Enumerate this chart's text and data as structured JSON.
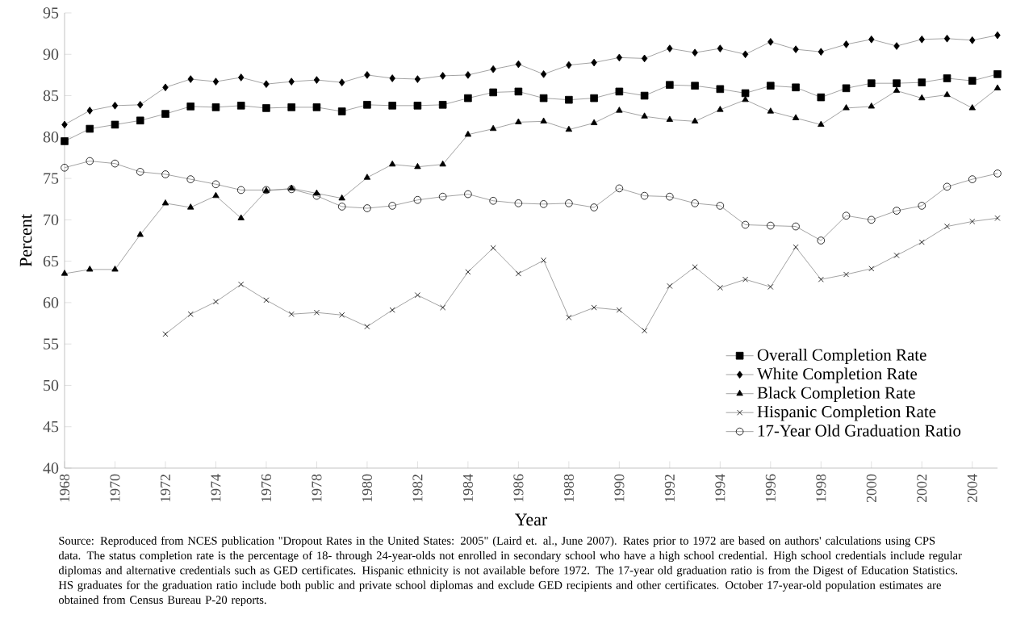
{
  "chart_data": {
    "type": "line",
    "xlabel": "Year",
    "ylabel": "Percent",
    "x": [
      1968,
      1969,
      1970,
      1971,
      1972,
      1973,
      1974,
      1975,
      1976,
      1977,
      1978,
      1979,
      1980,
      1981,
      1982,
      1983,
      1984,
      1985,
      1986,
      1987,
      1988,
      1989,
      1990,
      1991,
      1992,
      1993,
      1994,
      1995,
      1996,
      1997,
      1998,
      1999,
      2000,
      2001,
      2002,
      2003,
      2004,
      2005
    ],
    "series": [
      {
        "name": "Overall Completion Rate",
        "color": "#000000",
        "marker": "square",
        "values": [
          79.5,
          81.0,
          81.5,
          82.0,
          82.8,
          83.7,
          83.6,
          83.8,
          83.5,
          83.6,
          83.6,
          83.1,
          83.9,
          83.8,
          83.8,
          83.9,
          84.7,
          85.4,
          85.5,
          84.7,
          84.5,
          84.7,
          85.5,
          85.0,
          86.3,
          86.2,
          85.8,
          85.3,
          86.2,
          86.0,
          84.8,
          85.9,
          86.5,
          86.5,
          86.6,
          87.1,
          86.8,
          87.6
        ]
      },
      {
        "name": "White Completion Rate",
        "color": "#000000",
        "marker": "diamond",
        "values": [
          81.5,
          83.2,
          83.8,
          83.9,
          86.0,
          87.0,
          86.7,
          87.2,
          86.4,
          86.7,
          86.9,
          86.6,
          87.5,
          87.1,
          87.0,
          87.4,
          87.5,
          88.2,
          88.8,
          87.6,
          88.7,
          89.0,
          89.6,
          89.5,
          90.7,
          90.2,
          90.7,
          90.0,
          91.5,
          90.6,
          90.3,
          91.2,
          91.8,
          91.0,
          91.8,
          91.9,
          91.7,
          92.3
        ]
      },
      {
        "name": "Black Completion Rate",
        "color": "#000000",
        "marker": "triangle",
        "values": [
          63.5,
          64.0,
          64.0,
          68.2,
          72.0,
          71.5,
          72.9,
          70.2,
          73.5,
          73.8,
          73.2,
          72.6,
          75.1,
          76.7,
          76.4,
          76.7,
          80.3,
          81.0,
          81.8,
          81.9,
          80.9,
          81.7,
          83.2,
          82.5,
          82.1,
          81.9,
          83.3,
          84.5,
          83.1,
          82.3,
          81.5,
          83.5,
          83.7,
          85.6,
          84.7,
          85.1,
          83.5,
          85.9
        ]
      },
      {
        "name": "Hispanic Completion Rate",
        "color": "#000000",
        "marker": "cross",
        "values": [
          null,
          null,
          null,
          null,
          56.2,
          58.6,
          60.1,
          62.2,
          60.3,
          58.6,
          58.8,
          58.5,
          57.1,
          59.1,
          60.9,
          59.4,
          63.7,
          66.6,
          63.5,
          65.1,
          58.2,
          59.4,
          59.1,
          56.6,
          62.0,
          64.3,
          61.8,
          62.8,
          61.9,
          66.7,
          62.8,
          63.4,
          64.1,
          65.7,
          67.3,
          69.2,
          69.8,
          70.2
        ]
      },
      {
        "name": "17-Year Old Graduation Ratio",
        "color": "#000000",
        "marker": "circle",
        "values": [
          76.3,
          77.1,
          76.8,
          75.8,
          75.5,
          74.9,
          74.3,
          73.6,
          73.6,
          73.7,
          72.9,
          71.6,
          71.4,
          71.7,
          72.4,
          72.8,
          73.1,
          72.3,
          72.0,
          71.9,
          72.0,
          71.5,
          73.8,
          72.9,
          72.8,
          72.0,
          71.7,
          69.4,
          69.3,
          69.2,
          67.5,
          70.5,
          70.0,
          71.1,
          71.7,
          74.0,
          74.9,
          75.6
        ]
      }
    ],
    "xlim": [
      1968,
      2005
    ],
    "xticks": [
      1968,
      1970,
      1972,
      1974,
      1976,
      1978,
      1980,
      1982,
      1984,
      1986,
      1988,
      1990,
      1992,
      1994,
      1996,
      1998,
      2000,
      2002,
      2004
    ],
    "ylim": [
      40,
      95
    ],
    "yticks": [
      40,
      45,
      50,
      55,
      60,
      65,
      70,
      75,
      80,
      85,
      90,
      95
    ],
    "legend": "bottom right",
    "annotations": [
      "Source: Reproduced from NCES publication \"Dropout Rates in the United States: 2005\" (Laird et. al., June 2007). Rates prior to 1972 are based on authors' calculations using CPS data. The status completion rate is the percentage of 18- through 24-year-olds not enrolled in secondary school who have a high school credential. High school credentials include regular diplomas and alternative credentials such as GED certificates. Hispanic ethnicity is not available before 1972. The 17-year old graduation ratio is from the Digest of Education Statistics. HS graduates for the graduation ratio include both public and private school diplomas and exclude GED recipients and other certificates. October 17-year-old population estimates are obtained from Census Bureau P-20 reports."
    ]
  }
}
